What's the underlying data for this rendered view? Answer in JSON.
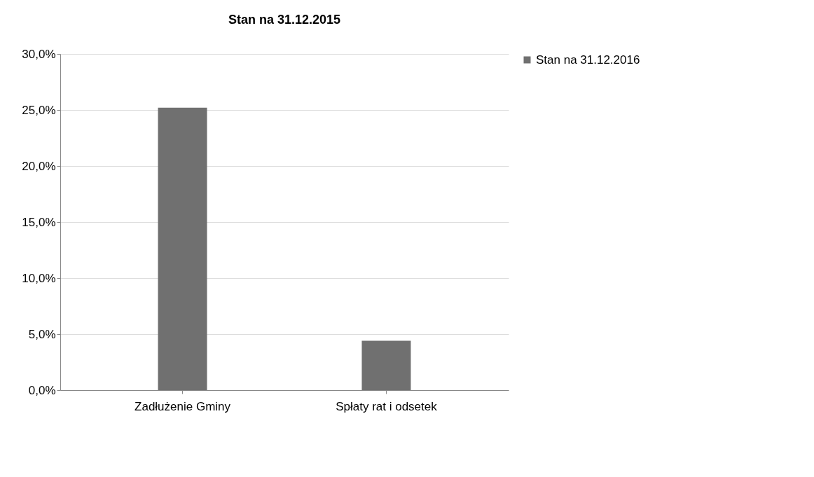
{
  "chart_data": {
    "type": "bar",
    "title": "Stan na 31.12.2015",
    "categories": [
      "Zadłużenie Gminy",
      "Spłaty rat i odsetek"
    ],
    "series": [
      {
        "name": "Stan na 31.12.2016",
        "color": "#707070",
        "values": [
          25.2,
          4.4
        ]
      }
    ],
    "ylim": [
      0,
      30
    ],
    "yticks": [
      {
        "value": 0,
        "label": "0,0%"
      },
      {
        "value": 5,
        "label": "5,0%"
      },
      {
        "value": 10,
        "label": "10,0%"
      },
      {
        "value": 15,
        "label": "15,0%"
      },
      {
        "value": 20,
        "label": "20,0%"
      },
      {
        "value": 25,
        "label": "25,0%"
      },
      {
        "value": 30,
        "label": "30,0%"
      }
    ],
    "grid": "y",
    "legend": "right"
  }
}
